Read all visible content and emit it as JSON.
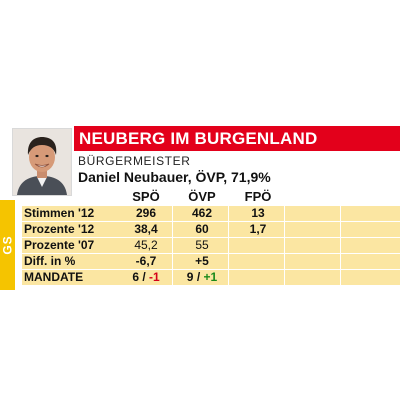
{
  "header": {
    "title": "NEUBERG IM BURGENLAND",
    "role": "BÜRGERMEISTER",
    "mayor_line": "Daniel Neubauer, ÖVP, 71,9%"
  },
  "side_tab": "GS",
  "photo": {
    "icon": "portrait-photo"
  },
  "table": {
    "parties": [
      "SPÖ",
      "ÖVP",
      "FPÖ"
    ],
    "rows": [
      {
        "label": "Stimmen '12",
        "spo": "296",
        "ovp": "462",
        "fpo": "13"
      },
      {
        "label": "Prozente '12",
        "spo": "38,4",
        "ovp": "60",
        "fpo": "1,7"
      },
      {
        "label": "Prozente '07",
        "spo": "45,2",
        "ovp": "55",
        "fpo": ""
      },
      {
        "label": "Diff. in %",
        "spo": "-6,7",
        "ovp": "+5",
        "fpo": ""
      },
      {
        "label": "MANDATE",
        "spo_main": "6",
        "spo_sep": " / ",
        "spo_diff": "-1",
        "ovp_main": "9",
        "ovp_sep": " / ",
        "ovp_diff": "+1",
        "fpo": ""
      }
    ]
  },
  "colors": {
    "title_bar": "#e3001b",
    "row_bg": "#fbe6a2",
    "side_tab": "#f5c400",
    "negative": "#d4001a",
    "positive": "#1a8a1a"
  }
}
